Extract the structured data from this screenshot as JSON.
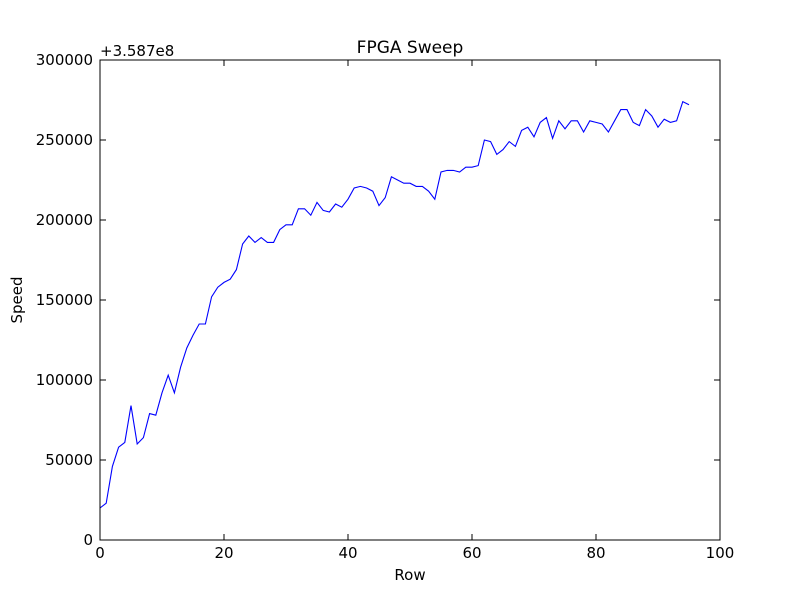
{
  "chart_data": {
    "type": "line",
    "title": "FPGA Sweep",
    "xlabel": "Row",
    "ylabel": "Speed",
    "y_offset_label": "+3.587e8",
    "y_offset": 358700000,
    "xlim": [
      0,
      100
    ],
    "ylim": [
      0,
      300000
    ],
    "x_ticks": [
      0,
      20,
      40,
      60,
      80,
      100
    ],
    "y_ticks": [
      0,
      50000,
      100000,
      150000,
      200000,
      250000,
      300000
    ],
    "grid": false,
    "line_color": "#0000ff",
    "series": [
      {
        "x": [
          0,
          1,
          2,
          3,
          4,
          5,
          6,
          7,
          8,
          9,
          10,
          11,
          12,
          13,
          14,
          15,
          16,
          17,
          18,
          19,
          20,
          21,
          22,
          23,
          24,
          25,
          26,
          27,
          28,
          29,
          30,
          31,
          32,
          33,
          34,
          35,
          36,
          37,
          38,
          39,
          40,
          41,
          42,
          43,
          44,
          45,
          46,
          47,
          48,
          49,
          50,
          51,
          52,
          53,
          54,
          55,
          56,
          57,
          58,
          59,
          60,
          61,
          62,
          63,
          64,
          65,
          66,
          67,
          68,
          69,
          70,
          71,
          72,
          73,
          74,
          75,
          76,
          77,
          78,
          79,
          80,
          81,
          82,
          83,
          84,
          85,
          86,
          87,
          88,
          89,
          90,
          91,
          92,
          93,
          94,
          95
        ],
        "values": [
          20000,
          23000,
          46000,
          58000,
          61000,
          84000,
          60000,
          64000,
          79000,
          78000,
          92000,
          103000,
          92000,
          108000,
          120000,
          128000,
          135000,
          135000,
          152000,
          158000,
          161000,
          163000,
          169000,
          185000,
          190000,
          186000,
          189000,
          186000,
          186000,
          194000,
          197000,
          197000,
          207000,
          207000,
          203000,
          211000,
          206000,
          205000,
          210000,
          208000,
          213000,
          220000,
          221000,
          220000,
          218000,
          209000,
          214000,
          227000,
          225000,
          223000,
          223000,
          221000,
          221000,
          218000,
          213000,
          230000,
          231000,
          231000,
          230000,
          233000,
          233000,
          234000,
          250000,
          249000,
          241000,
          244000,
          249000,
          246000,
          256000,
          258000,
          252000,
          261000,
          264000,
          251000,
          262000,
          257000,
          262000,
          262000,
          255000,
          262000,
          261000,
          260000,
          255000,
          262000,
          269000,
          269000,
          261000,
          259000,
          269000,
          265000,
          258000,
          263000,
          261000,
          262000,
          274000,
          272000
        ]
      }
    ]
  }
}
